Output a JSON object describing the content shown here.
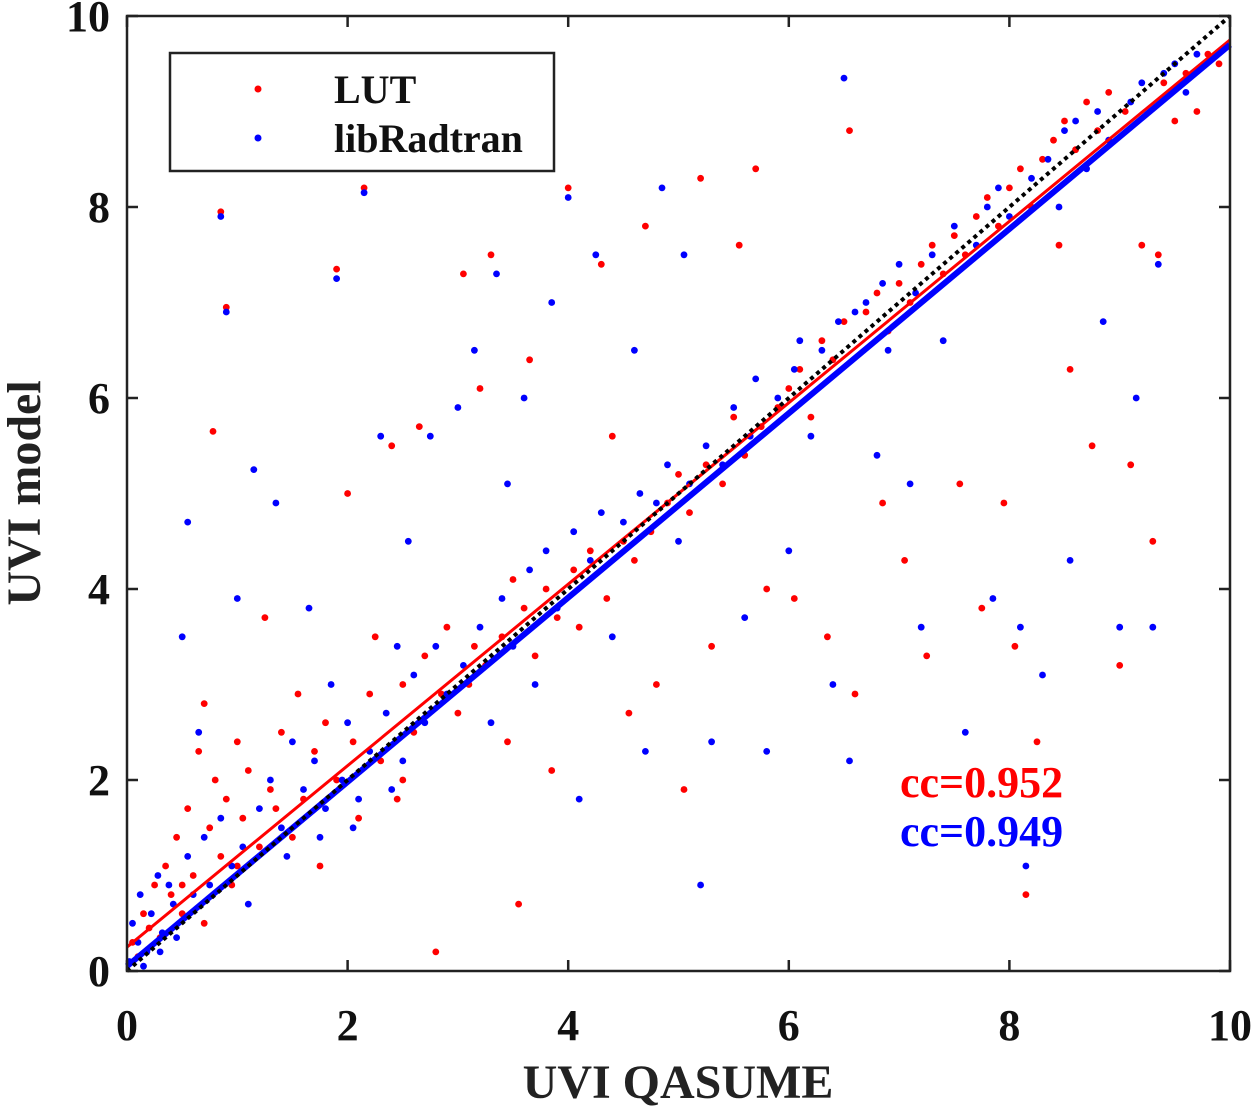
{
  "chart_data": {
    "type": "scatter",
    "xlabel": "UVI QASUME",
    "ylabel": "UVI model",
    "xlim": [
      0,
      10
    ],
    "ylim": [
      0,
      10
    ],
    "xticks": [
      0,
      2,
      4,
      6,
      8,
      10
    ],
    "yticks": [
      0,
      2,
      4,
      6,
      8,
      10
    ],
    "grid": false,
    "legend_position": "top-left",
    "series": [
      {
        "name": "LUT",
        "color": "#ff0000",
        "fit": {
          "x": [
            0,
            10
          ],
          "y": [
            0.25,
            9.75
          ]
        },
        "cc_label": "cc=0.952",
        "points": [
          [
            0.05,
            0.3
          ],
          [
            0.1,
            0.15
          ],
          [
            0.15,
            0.6
          ],
          [
            0.2,
            0.45
          ],
          [
            0.25,
            0.9
          ],
          [
            0.3,
            0.35
          ],
          [
            0.35,
            1.1
          ],
          [
            0.4,
            0.8
          ],
          [
            0.45,
            1.4
          ],
          [
            0.5,
            0.6
          ],
          [
            0.55,
            1.7
          ],
          [
            0.6,
            1.0
          ],
          [
            0.65,
            2.3
          ],
          [
            0.7,
            2.8
          ],
          [
            0.75,
            1.5
          ],
          [
            0.8,
            2.0
          ],
          [
            0.85,
            1.2
          ],
          [
            0.9,
            1.8
          ],
          [
            0.95,
            0.9
          ],
          [
            1.0,
            2.4
          ],
          [
            1.05,
            1.6
          ],
          [
            1.1,
            2.1
          ],
          [
            1.2,
            1.3
          ],
          [
            1.25,
            3.7
          ],
          [
            1.3,
            1.9
          ],
          [
            1.4,
            2.5
          ],
          [
            1.5,
            1.4
          ],
          [
            1.55,
            2.9
          ],
          [
            1.6,
            1.8
          ],
          [
            1.7,
            2.3
          ],
          [
            1.75,
            1.1
          ],
          [
            1.8,
            2.6
          ],
          [
            1.9,
            2.0
          ],
          [
            2.0,
            5.0
          ],
          [
            2.05,
            2.4
          ],
          [
            2.1,
            1.6
          ],
          [
            2.2,
            2.9
          ],
          [
            2.25,
            3.5
          ],
          [
            2.3,
            2.2
          ],
          [
            2.4,
            5.5
          ],
          [
            2.45,
            1.8
          ],
          [
            2.5,
            3.0
          ],
          [
            2.6,
            2.5
          ],
          [
            2.65,
            5.7
          ],
          [
            2.7,
            3.3
          ],
          [
            2.8,
            0.2
          ],
          [
            2.85,
            2.9
          ],
          [
            2.9,
            3.6
          ],
          [
            3.0,
            2.7
          ],
          [
            3.05,
            7.3
          ],
          [
            3.1,
            3.0
          ],
          [
            3.15,
            3.4
          ],
          [
            3.2,
            6.1
          ],
          [
            3.25,
            3.2
          ],
          [
            3.3,
            7.5
          ],
          [
            3.4,
            3.5
          ],
          [
            3.45,
            2.4
          ],
          [
            3.5,
            4.1
          ],
          [
            3.55,
            0.7
          ],
          [
            3.6,
            3.8
          ],
          [
            3.65,
            6.4
          ],
          [
            3.7,
            3.3
          ],
          [
            3.8,
            4.0
          ],
          [
            3.85,
            2.1
          ],
          [
            3.9,
            3.7
          ],
          [
            4.0,
            8.2
          ],
          [
            4.05,
            4.2
          ],
          [
            4.1,
            3.6
          ],
          [
            4.2,
            4.4
          ],
          [
            4.3,
            7.4
          ],
          [
            4.35,
            3.9
          ],
          [
            4.4,
            5.6
          ],
          [
            4.5,
            4.5
          ],
          [
            4.55,
            2.7
          ],
          [
            4.6,
            4.3
          ],
          [
            4.7,
            7.8
          ],
          [
            4.75,
            4.6
          ],
          [
            4.8,
            3.0
          ],
          [
            4.9,
            4.9
          ],
          [
            5.0,
            5.2
          ],
          [
            5.05,
            1.9
          ],
          [
            5.1,
            4.8
          ],
          [
            5.2,
            8.3
          ],
          [
            5.25,
            5.3
          ],
          [
            5.3,
            3.4
          ],
          [
            5.4,
            5.1
          ],
          [
            5.5,
            5.8
          ],
          [
            5.55,
            7.6
          ],
          [
            5.6,
            5.4
          ],
          [
            5.7,
            8.4
          ],
          [
            5.75,
            5.7
          ],
          [
            5.8,
            4.0
          ],
          [
            5.9,
            5.9
          ],
          [
            6.0,
            6.1
          ],
          [
            6.05,
            3.9
          ],
          [
            6.1,
            6.3
          ],
          [
            6.2,
            5.8
          ],
          [
            6.3,
            6.6
          ],
          [
            6.35,
            3.5
          ],
          [
            6.4,
            6.4
          ],
          [
            6.5,
            6.8
          ],
          [
            6.55,
            8.8
          ],
          [
            6.6,
            2.9
          ],
          [
            6.7,
            6.9
          ],
          [
            6.8,
            7.1
          ],
          [
            6.85,
            4.9
          ],
          [
            6.9,
            6.7
          ],
          [
            7.0,
            7.2
          ],
          [
            7.05,
            4.3
          ],
          [
            7.1,
            7.0
          ],
          [
            7.2,
            7.4
          ],
          [
            7.25,
            3.3
          ],
          [
            7.3,
            7.6
          ],
          [
            7.4,
            7.3
          ],
          [
            7.5,
            7.7
          ],
          [
            7.55,
            5.1
          ],
          [
            7.6,
            7.5
          ],
          [
            7.7,
            7.9
          ],
          [
            7.75,
            3.8
          ],
          [
            7.8,
            8.1
          ],
          [
            7.9,
            7.8
          ],
          [
            7.95,
            4.9
          ],
          [
            8.0,
            8.2
          ],
          [
            8.05,
            3.4
          ],
          [
            8.1,
            8.4
          ],
          [
            8.15,
            0.8
          ],
          [
            8.2,
            8.0
          ],
          [
            8.25,
            2.4
          ],
          [
            8.3,
            8.5
          ],
          [
            8.4,
            8.7
          ],
          [
            8.45,
            7.6
          ],
          [
            8.5,
            8.9
          ],
          [
            8.55,
            6.3
          ],
          [
            8.6,
            8.6
          ],
          [
            8.7,
            9.1
          ],
          [
            8.75,
            5.5
          ],
          [
            8.8,
            8.8
          ],
          [
            8.9,
            9.2
          ],
          [
            9.0,
            3.2
          ],
          [
            9.05,
            9.0
          ],
          [
            9.1,
            5.3
          ],
          [
            9.2,
            7.6
          ],
          [
            9.3,
            4.5
          ],
          [
            9.35,
            7.5
          ],
          [
            9.4,
            9.3
          ],
          [
            9.5,
            8.9
          ],
          [
            9.6,
            9.4
          ],
          [
            9.7,
            9.0
          ],
          [
            9.8,
            9.6
          ],
          [
            9.9,
            9.5
          ],
          [
            0.78,
            5.65
          ],
          [
            0.85,
            7.95
          ],
          [
            0.9,
            6.95
          ],
          [
            1.9,
            7.35
          ],
          [
            2.15,
            8.2
          ],
          [
            0.5,
            0.9
          ],
          [
            1.0,
            1.1
          ],
          [
            1.35,
            1.7
          ],
          [
            0.7,
            0.5
          ],
          [
            2.5,
            2.0
          ]
        ]
      },
      {
        "name": "libRadtran",
        "color": "#0000ff",
        "fit": {
          "x": [
            0,
            10
          ],
          "y": [
            0.05,
            9.7
          ]
        },
        "cc_label": "cc=0.949",
        "points": [
          [
            0.02,
            0.1
          ],
          [
            0.05,
            0.5
          ],
          [
            0.1,
            0.3
          ],
          [
            0.12,
            0.8
          ],
          [
            0.18,
            0.2
          ],
          [
            0.22,
            0.6
          ],
          [
            0.28,
            1.0
          ],
          [
            0.32,
            0.4
          ],
          [
            0.38,
            0.9
          ],
          [
            0.42,
            0.7
          ],
          [
            0.5,
            3.5
          ],
          [
            0.55,
            1.2
          ],
          [
            0.6,
            0.8
          ],
          [
            0.65,
            2.5
          ],
          [
            0.7,
            1.4
          ],
          [
            0.75,
            0.9
          ],
          [
            0.85,
            1.6
          ],
          [
            0.9,
            6.9
          ],
          [
            0.95,
            1.1
          ],
          [
            1.0,
            3.9
          ],
          [
            1.05,
            1.3
          ],
          [
            1.15,
            5.25
          ],
          [
            1.2,
            1.7
          ],
          [
            1.3,
            2.0
          ],
          [
            1.35,
            4.9
          ],
          [
            1.4,
            1.5
          ],
          [
            1.5,
            2.4
          ],
          [
            1.6,
            1.9
          ],
          [
            1.65,
            3.8
          ],
          [
            1.7,
            2.2
          ],
          [
            1.8,
            1.7
          ],
          [
            1.85,
            3.0
          ],
          [
            1.9,
            7.25
          ],
          [
            1.95,
            2.0
          ],
          [
            2.0,
            2.6
          ],
          [
            2.1,
            1.8
          ],
          [
            2.15,
            8.15
          ],
          [
            2.2,
            2.3
          ],
          [
            2.3,
            5.6
          ],
          [
            2.35,
            2.7
          ],
          [
            2.45,
            3.4
          ],
          [
            2.5,
            2.2
          ],
          [
            2.55,
            4.5
          ],
          [
            2.6,
            3.1
          ],
          [
            2.7,
            2.6
          ],
          [
            2.75,
            5.6
          ],
          [
            2.8,
            3.4
          ],
          [
            2.9,
            2.9
          ],
          [
            3.0,
            5.9
          ],
          [
            3.05,
            3.2
          ],
          [
            3.15,
            6.5
          ],
          [
            3.2,
            3.6
          ],
          [
            3.3,
            2.6
          ],
          [
            3.35,
            7.3
          ],
          [
            3.4,
            3.9
          ],
          [
            3.45,
            5.1
          ],
          [
            3.5,
            3.4
          ],
          [
            3.6,
            6.0
          ],
          [
            3.65,
            4.2
          ],
          [
            3.7,
            3.0
          ],
          [
            3.8,
            4.4
          ],
          [
            3.85,
            7.0
          ],
          [
            3.9,
            3.8
          ],
          [
            4.0,
            8.1
          ],
          [
            4.05,
            4.6
          ],
          [
            4.1,
            1.8
          ],
          [
            4.2,
            4.3
          ],
          [
            4.25,
            7.5
          ],
          [
            4.3,
            4.8
          ],
          [
            4.4,
            3.5
          ],
          [
            4.5,
            4.7
          ],
          [
            4.6,
            6.5
          ],
          [
            4.65,
            5.0
          ],
          [
            4.7,
            2.3
          ],
          [
            4.8,
            4.9
          ],
          [
            4.85,
            8.2
          ],
          [
            4.9,
            5.3
          ],
          [
            5.0,
            4.5
          ],
          [
            5.05,
            7.5
          ],
          [
            5.1,
            5.1
          ],
          [
            5.2,
            0.9
          ],
          [
            5.25,
            5.5
          ],
          [
            5.3,
            2.4
          ],
          [
            5.4,
            5.3
          ],
          [
            5.5,
            5.9
          ],
          [
            5.6,
            3.7
          ],
          [
            5.65,
            5.6
          ],
          [
            5.7,
            6.2
          ],
          [
            5.8,
            2.3
          ],
          [
            5.9,
            6.0
          ],
          [
            6.0,
            4.4
          ],
          [
            6.05,
            6.3
          ],
          [
            6.1,
            6.6
          ],
          [
            6.2,
            5.6
          ],
          [
            6.3,
            6.5
          ],
          [
            6.4,
            3.0
          ],
          [
            6.45,
            6.8
          ],
          [
            6.5,
            9.35
          ],
          [
            6.55,
            2.2
          ],
          [
            6.6,
            6.9
          ],
          [
            6.7,
            7.0
          ],
          [
            6.8,
            5.4
          ],
          [
            6.85,
            7.2
          ],
          [
            6.9,
            6.5
          ],
          [
            7.0,
            7.4
          ],
          [
            7.1,
            5.1
          ],
          [
            7.15,
            7.1
          ],
          [
            7.2,
            3.6
          ],
          [
            7.3,
            7.5
          ],
          [
            7.4,
            6.6
          ],
          [
            7.5,
            7.8
          ],
          [
            7.6,
            2.5
          ],
          [
            7.7,
            7.6
          ],
          [
            7.8,
            8.0
          ],
          [
            7.85,
            3.9
          ],
          [
            7.9,
            8.2
          ],
          [
            8.0,
            7.9
          ],
          [
            8.1,
            3.6
          ],
          [
            8.15,
            1.1
          ],
          [
            8.2,
            8.3
          ],
          [
            8.3,
            3.1
          ],
          [
            8.35,
            8.5
          ],
          [
            8.45,
            8.0
          ],
          [
            8.5,
            8.8
          ],
          [
            8.55,
            4.3
          ],
          [
            8.6,
            8.9
          ],
          [
            8.7,
            8.4
          ],
          [
            8.8,
            9.0
          ],
          [
            8.85,
            6.8
          ],
          [
            8.9,
            8.7
          ],
          [
            9.0,
            3.6
          ],
          [
            9.1,
            9.1
          ],
          [
            9.15,
            6.0
          ],
          [
            9.2,
            9.3
          ],
          [
            9.3,
            3.6
          ],
          [
            9.35,
            7.4
          ],
          [
            9.4,
            9.4
          ],
          [
            9.5,
            9.5
          ],
          [
            9.6,
            9.2
          ],
          [
            9.7,
            9.6
          ],
          [
            0.15,
            0.05
          ],
          [
            0.3,
            0.2
          ],
          [
            0.45,
            0.35
          ],
          [
            0.55,
            4.7
          ],
          [
            0.85,
            7.9
          ],
          [
            1.1,
            0.7
          ],
          [
            1.45,
            1.2
          ],
          [
            1.75,
            1.4
          ],
          [
            2.05,
            1.5
          ],
          [
            2.4,
            1.9
          ]
        ]
      }
    ],
    "reference_line": {
      "x": [
        0,
        10
      ],
      "y": [
        0,
        10
      ],
      "color": "#000000",
      "style": "dotted"
    }
  }
}
